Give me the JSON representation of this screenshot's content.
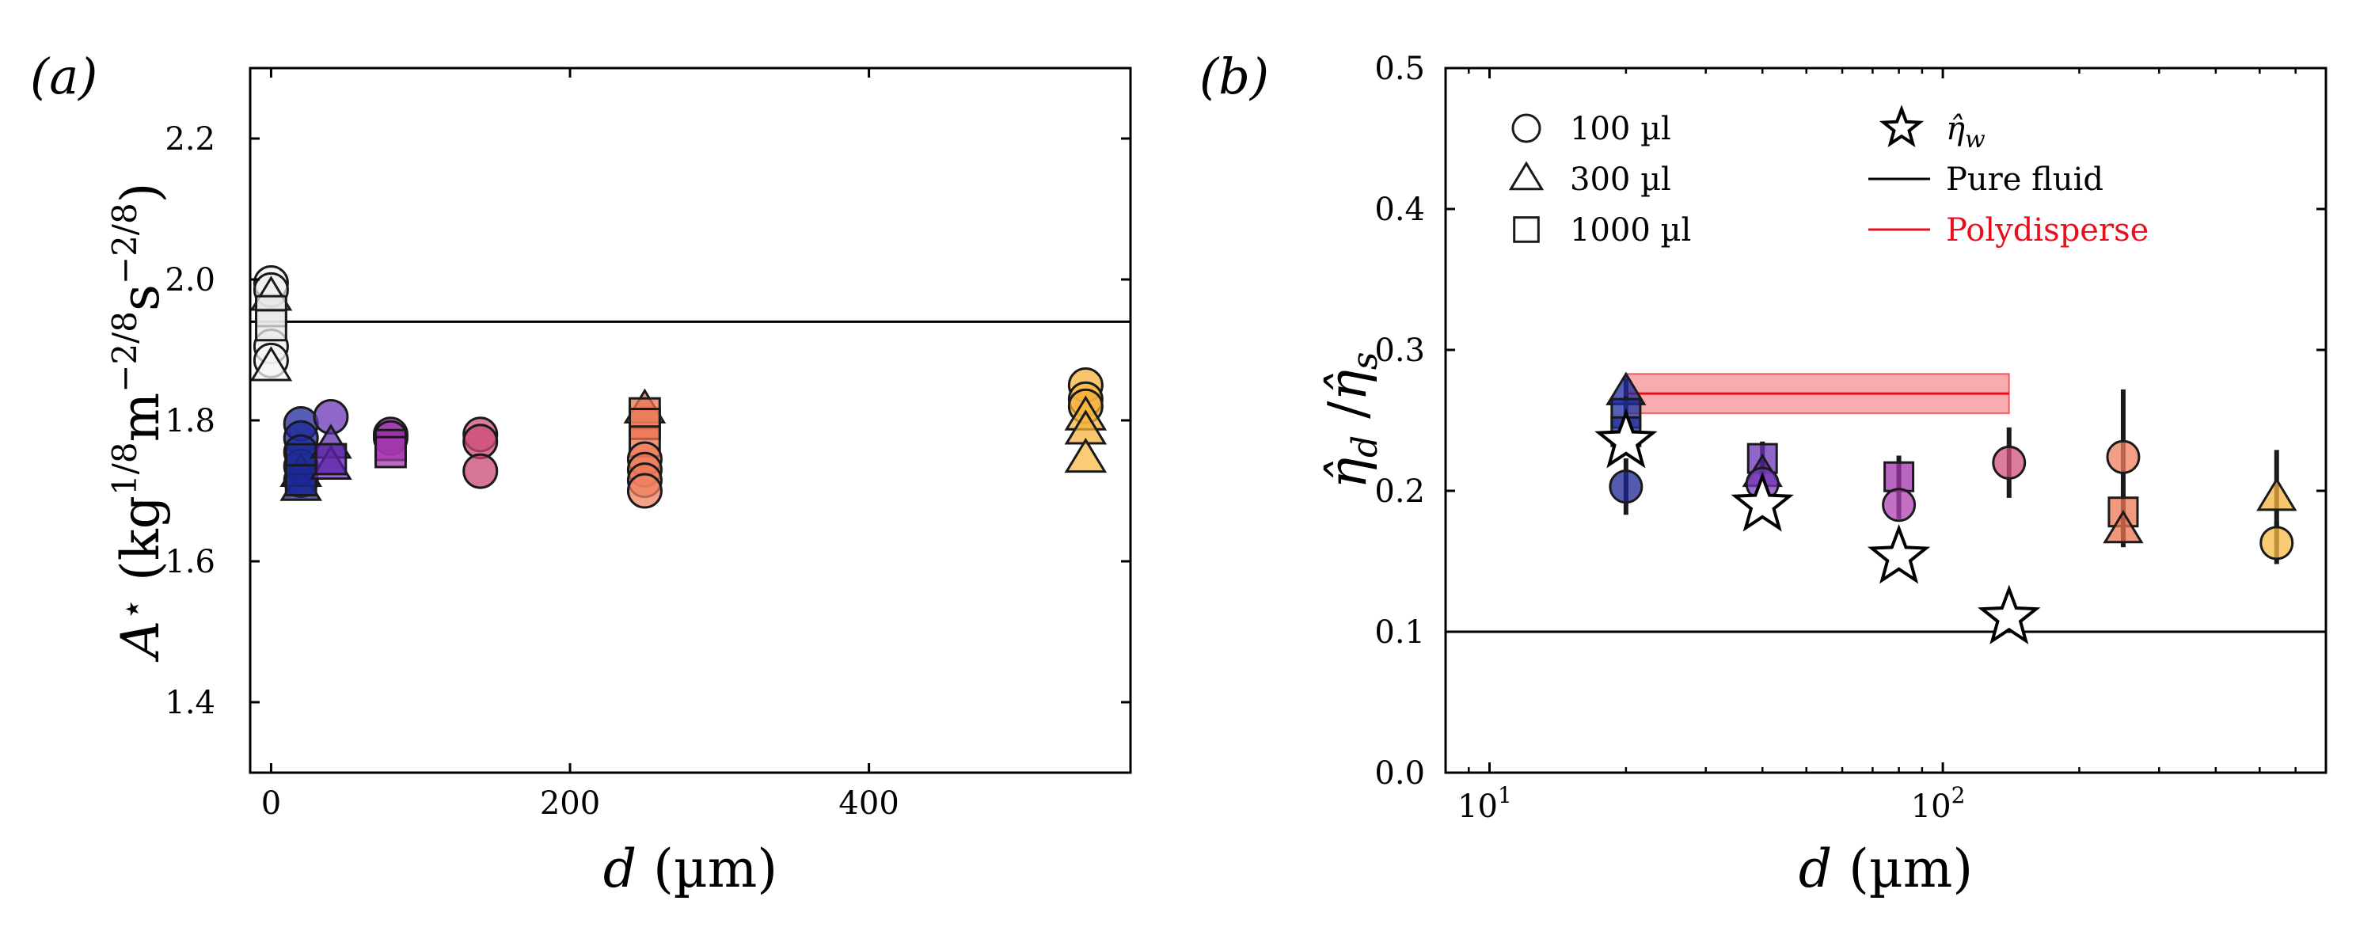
{
  "chart_data": [
    {
      "panel_label": "(a)",
      "type": "scatter",
      "xlabel": "d (µm)",
      "ylabel": "A⋆ (kg^{1/8}m^{−2/8}s^{−2/8})",
      "xlim": [
        -14,
        575
      ],
      "ylim": [
        1.3,
        2.3
      ],
      "x_ticks": [
        0,
        200,
        400
      ],
      "y_ticks": [
        1.4,
        1.6,
        1.8,
        2.0,
        2.2
      ],
      "reference_line": {
        "y": 1.94
      },
      "points": [
        {
          "x": 0,
          "y": 1.995,
          "marker": "circle",
          "color": "#f2f2f2"
        },
        {
          "x": 0,
          "y": 1.985,
          "marker": "circle",
          "color": "#eeeeee"
        },
        {
          "x": 0,
          "y": 1.905,
          "marker": "circle",
          "color": "#f0f0f0"
        },
        {
          "x": 0,
          "y": 1.885,
          "marker": "circle",
          "color": "#f4f4f4"
        },
        {
          "x": 0,
          "y": 1.975,
          "marker": "triangle",
          "color": "#efefef"
        },
        {
          "x": 0,
          "y": 1.875,
          "marker": "triangle",
          "color": "#f6f6f6"
        },
        {
          "x": 0,
          "y": 1.955,
          "marker": "square",
          "color": "#e6e6e6"
        },
        {
          "x": 0,
          "y": 1.935,
          "marker": "square",
          "color": "#eaeaea"
        },
        {
          "x": 20,
          "y": 1.795,
          "marker": "circle",
          "color": "#1e2a9c"
        },
        {
          "x": 20,
          "y": 1.775,
          "marker": "circle",
          "color": "#1d2797"
        },
        {
          "x": 20,
          "y": 1.755,
          "marker": "circle",
          "color": "#1f2c9f"
        },
        {
          "x": 20,
          "y": 1.735,
          "marker": "circle",
          "color": "#1c2592"
        },
        {
          "x": 20,
          "y": 1.715,
          "marker": "circle",
          "color": "#202ea3"
        },
        {
          "x": 20,
          "y": 1.705,
          "marker": "triangle",
          "color": "#1e2a9a"
        },
        {
          "x": 20,
          "y": 1.725,
          "marker": "triangle",
          "color": "#1c2694"
        },
        {
          "x": 20,
          "y": 1.745,
          "marker": "square",
          "color": "#1f2b9e"
        },
        {
          "x": 20,
          "y": 1.715,
          "marker": "square",
          "color": "#1d2898"
        },
        {
          "x": 40,
          "y": 1.805,
          "marker": "circle",
          "color": "#6a34b5"
        },
        {
          "x": 40,
          "y": 1.765,
          "marker": "triangle",
          "color": "#6030ad"
        },
        {
          "x": 40,
          "y": 1.735,
          "marker": "triangle",
          "color": "#7a3cbc"
        },
        {
          "x": 40,
          "y": 1.745,
          "marker": "square",
          "color": "#5b23a8"
        },
        {
          "x": 80,
          "y": 1.78,
          "marker": "circle",
          "color": "#9a2fa8"
        },
        {
          "x": 80,
          "y": 1.775,
          "marker": "circle",
          "color": "#a034ab"
        },
        {
          "x": 80,
          "y": 1.765,
          "marker": "square",
          "color": "#9a2fa8"
        },
        {
          "x": 80,
          "y": 1.755,
          "marker": "square",
          "color": "#a539ae"
        },
        {
          "x": 140,
          "y": 1.78,
          "marker": "circle",
          "color": "#d0517d"
        },
        {
          "x": 140,
          "y": 1.77,
          "marker": "circle",
          "color": "#cc4b78"
        },
        {
          "x": 140,
          "y": 1.728,
          "marker": "circle",
          "color": "#c84774"
        },
        {
          "x": 250,
          "y": 1.815,
          "marker": "triangle",
          "color": "#ec7a58"
        },
        {
          "x": 250,
          "y": 1.81,
          "marker": "square",
          "color": "#ea7452"
        },
        {
          "x": 250,
          "y": 1.795,
          "marker": "square",
          "color": "#ee7c5a"
        },
        {
          "x": 250,
          "y": 1.77,
          "marker": "square",
          "color": "#e9714f"
        },
        {
          "x": 250,
          "y": 1.745,
          "marker": "circle",
          "color": "#ef7f5d"
        },
        {
          "x": 250,
          "y": 1.73,
          "marker": "circle",
          "color": "#eb7755"
        },
        {
          "x": 250,
          "y": 1.715,
          "marker": "circle",
          "color": "#ed7a58"
        },
        {
          "x": 250,
          "y": 1.7,
          "marker": "circle",
          "color": "#f08261"
        },
        {
          "x": 545,
          "y": 1.85,
          "marker": "circle",
          "color": "#f5b33d"
        },
        {
          "x": 545,
          "y": 1.83,
          "marker": "circle",
          "color": "#f7b944"
        },
        {
          "x": 545,
          "y": 1.82,
          "marker": "circle",
          "color": "#f4b03a"
        },
        {
          "x": 545,
          "y": 1.805,
          "marker": "triangle",
          "color": "#f6b640"
        },
        {
          "x": 545,
          "y": 1.785,
          "marker": "triangle",
          "color": "#f5b33d"
        },
        {
          "x": 545,
          "y": 1.745,
          "marker": "triangle",
          "color": "#f8bb47"
        }
      ]
    },
    {
      "panel_label": "(b)",
      "type": "scatter",
      "xlabel": "d (µm)",
      "ylabel": "η̂_d /η̂_s",
      "xscale": "log",
      "xlim": [
        8,
        700
      ],
      "ylim": [
        0.0,
        0.5
      ],
      "x_ticks": [
        {
          "value": 10,
          "base": "10",
          "exp": "1"
        },
        {
          "value": 100,
          "base": "10",
          "exp": "2"
        }
      ],
      "y_ticks": [
        0.0,
        0.1,
        0.2,
        0.3,
        0.4,
        0.5
      ],
      "reference_line": {
        "y": 0.1,
        "label": "Pure fluid"
      },
      "polydisperse_band": {
        "x": [
          20,
          140
        ],
        "y": 0.269,
        "low": 0.255,
        "high": 0.283,
        "label": "Polydisperse",
        "color": "#e8101c"
      },
      "legend": {
        "markers": [
          {
            "marker": "circle",
            "label": "100 µl"
          },
          {
            "marker": "triangle",
            "label": "300 µl"
          },
          {
            "marker": "square",
            "label": "1000 µl"
          }
        ],
        "lines": [
          {
            "marker": "star",
            "label_base": "η̂",
            "label_sub": "w"
          },
          {
            "line": "black",
            "label": "Pure fluid"
          },
          {
            "line": "red",
            "label": "Polydisperse"
          }
        ]
      },
      "points": [
        {
          "x": 20,
          "y": 0.27,
          "marker": "triangle",
          "color": "#1e2a9c",
          "err": 0.01
        },
        {
          "x": 20,
          "y": 0.255,
          "marker": "square",
          "color": "#1f2ca0",
          "err": 0.012
        },
        {
          "x": 20,
          "y": 0.242,
          "marker": "square",
          "color": "#26329f",
          "err": 0.01
        },
        {
          "x": 20,
          "y": 0.203,
          "marker": "circle",
          "color": "#1c2594",
          "err": 0.02
        },
        {
          "x": 40,
          "y": 0.223,
          "marker": "square",
          "color": "#6a34b5",
          "err": 0.012
        },
        {
          "x": 40,
          "y": 0.212,
          "marker": "triangle",
          "color": "#5b23a8",
          "err": 0.01
        },
        {
          "x": 40,
          "y": 0.205,
          "marker": "circle",
          "color": "#7a3cbc",
          "err": 0.01
        },
        {
          "x": 80,
          "y": 0.21,
          "marker": "square",
          "color": "#a034ab",
          "err": 0.015
        },
        {
          "x": 80,
          "y": 0.19,
          "marker": "circle",
          "color": "#b040b0",
          "err": 0.01
        },
        {
          "x": 140,
          "y": 0.22,
          "marker": "circle",
          "color": "#d0517d",
          "err": 0.025
        },
        {
          "x": 250,
          "y": 0.224,
          "marker": "circle",
          "color": "#ef7f5d",
          "err": 0.048
        },
        {
          "x": 250,
          "y": 0.185,
          "marker": "square",
          "color": "#ec7855",
          "err": 0.02
        },
        {
          "x": 250,
          "y": 0.172,
          "marker": "triangle",
          "color": "#ea7452",
          "err": 0.012
        },
        {
          "x": 545,
          "y": 0.195,
          "marker": "triangle",
          "color": "#f5b33d",
          "err": 0.034
        },
        {
          "x": 545,
          "y": 0.163,
          "marker": "circle",
          "color": "#f7b944",
          "err": 0.015
        }
      ],
      "stars": [
        {
          "x": 20,
          "y": 0.235
        },
        {
          "x": 40,
          "y": 0.19
        },
        {
          "x": 80,
          "y": 0.153
        },
        {
          "x": 140,
          "y": 0.11
        }
      ]
    }
  ]
}
